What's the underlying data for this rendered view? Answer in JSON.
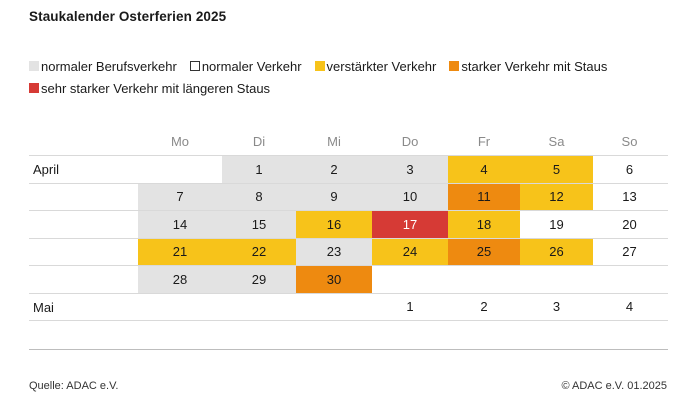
{
  "title": "Staukalender Osterferien 2025",
  "legend": [
    {
      "label": "normaler Berufsverkehr",
      "key": "berufsverkehr"
    },
    {
      "label": "normaler Verkehr",
      "key": "normal"
    },
    {
      "label": "verstärkter Verkehr",
      "key": "verstaerkt"
    },
    {
      "label": "starker Verkehr mit Staus",
      "key": "stark"
    },
    {
      "label": "sehr starker Verkehr mit längeren Staus",
      "key": "sehr_stark"
    }
  ],
  "colors": {
    "berufsverkehr": "#e3e3e3",
    "normal": "#ffffff",
    "verstaerkt": "#f7c31a",
    "stark": "#ee8a10",
    "sehr_stark": "#d63a35"
  },
  "footer": {
    "source": "Quelle: ADAC e.V.",
    "copyright": "© ADAC e.V. 01.2025"
  },
  "chart_data": {
    "type": "table",
    "title": "Staukalender Osterferien 2025",
    "weekdays": [
      "Mo",
      "Di",
      "Mi",
      "Do",
      "Fr",
      "Sa",
      "So"
    ],
    "rows": [
      {
        "month": "April",
        "days": [
          null,
          1,
          2,
          3,
          4,
          5,
          6
        ],
        "levels": [
          null,
          "berufsverkehr",
          "berufsverkehr",
          "berufsverkehr",
          "verstaerkt",
          "verstaerkt",
          "normal"
        ]
      },
      {
        "month": "",
        "days": [
          7,
          8,
          9,
          10,
          11,
          12,
          13
        ],
        "levels": [
          "berufsverkehr",
          "berufsverkehr",
          "berufsverkehr",
          "berufsverkehr",
          "stark",
          "verstaerkt",
          "normal"
        ]
      },
      {
        "month": "",
        "days": [
          14,
          15,
          16,
          17,
          18,
          19,
          20
        ],
        "levels": [
          "berufsverkehr",
          "berufsverkehr",
          "verstaerkt",
          "sehr_stark",
          "verstaerkt",
          "normal",
          "normal"
        ]
      },
      {
        "month": "",
        "days": [
          21,
          22,
          23,
          24,
          25,
          26,
          27
        ],
        "levels": [
          "verstaerkt",
          "verstaerkt",
          "berufsverkehr",
          "verstaerkt",
          "stark",
          "verstaerkt",
          "normal"
        ]
      },
      {
        "month": "",
        "days": [
          28,
          29,
          30,
          null,
          null,
          null,
          null
        ],
        "levels": [
          "berufsverkehr",
          "berufsverkehr",
          "stark",
          null,
          null,
          null,
          null
        ]
      },
      {
        "month": "Mai",
        "days": [
          null,
          null,
          null,
          1,
          2,
          3,
          4
        ],
        "levels": [
          null,
          null,
          null,
          "normal",
          "normal",
          "normal",
          "normal"
        ]
      }
    ]
  }
}
